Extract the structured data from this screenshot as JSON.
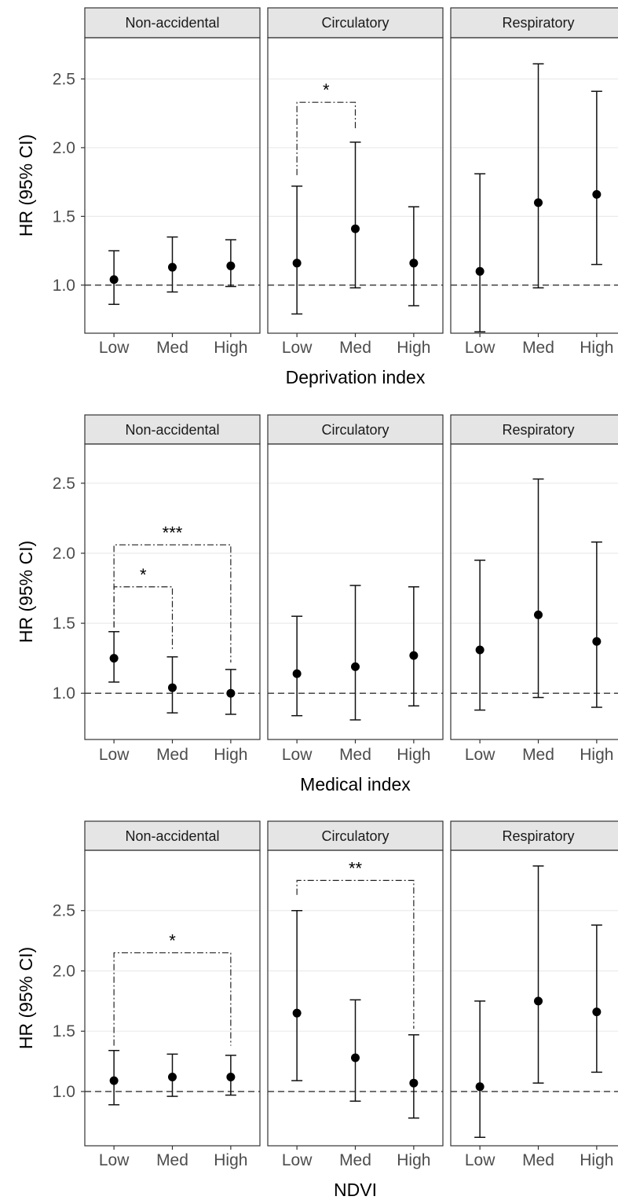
{
  "y_axis_title": "HR (95% CI)",
  "panel_titles": [
    "Non-accidental",
    "Circulatory",
    "Respiratory"
  ],
  "reference_line": 1.0,
  "chart_data": [
    {
      "type": "errorbar",
      "xlabel": "Deprivation index",
      "ylabel": "HR (95% CI)",
      "ylim": [
        0.65,
        2.8
      ],
      "yticks": [
        "1.0",
        "1.5",
        "2.0",
        "2.5"
      ],
      "categories": [
        "Low",
        "Med",
        "High"
      ],
      "grid": true,
      "facets": [
        {
          "name": "Non-accidental",
          "points": [
            {
              "x": "Low",
              "est": 1.04,
              "lo": 0.86,
              "hi": 1.25
            },
            {
              "x": "Med",
              "est": 1.13,
              "lo": 0.95,
              "hi": 1.35
            },
            {
              "x": "High",
              "est": 1.14,
              "lo": 0.99,
              "hi": 1.33
            }
          ],
          "significance": []
        },
        {
          "name": "Circulatory",
          "points": [
            {
              "x": "Low",
              "est": 1.16,
              "lo": 0.79,
              "hi": 1.72
            },
            {
              "x": "Med",
              "est": 1.41,
              "lo": 0.98,
              "hi": 2.04
            },
            {
              "x": "High",
              "est": 1.16,
              "lo": 0.85,
              "hi": 1.57
            }
          ],
          "significance": [
            {
              "from": "Low",
              "to": "Med",
              "label": "*",
              "level": 2.33,
              "from_start": 1.8,
              "to_start": 2.14
            }
          ]
        },
        {
          "name": "Respiratory",
          "points": [
            {
              "x": "Low",
              "est": 1.1,
              "lo": 0.66,
              "hi": 1.81
            },
            {
              "x": "Med",
              "est": 1.6,
              "lo": 0.98,
              "hi": 2.61
            },
            {
              "x": "High",
              "est": 1.66,
              "lo": 1.15,
              "hi": 2.41
            }
          ],
          "significance": []
        }
      ]
    },
    {
      "type": "errorbar",
      "xlabel": "Medical index",
      "ylabel": "HR (95% CI)",
      "ylim": [
        0.67,
        2.78
      ],
      "yticks": [
        "1.0",
        "1.5",
        "2.0",
        "2.5"
      ],
      "categories": [
        "Low",
        "Med",
        "High"
      ],
      "grid": true,
      "facets": [
        {
          "name": "Non-accidental",
          "points": [
            {
              "x": "Low",
              "est": 1.25,
              "lo": 1.08,
              "hi": 1.44
            },
            {
              "x": "Med",
              "est": 1.04,
              "lo": 0.86,
              "hi": 1.26
            },
            {
              "x": "High",
              "est": 1.0,
              "lo": 0.85,
              "hi": 1.17
            }
          ],
          "significance": [
            {
              "from": "Low",
              "to": "Med",
              "label": "*",
              "level": 1.76,
              "from_start": 1.47,
              "to_start": 1.3
            },
            {
              "from": "Low",
              "to": "High",
              "label": "***",
              "level": 2.06,
              "from_start": 1.47,
              "to_start": 1.22
            }
          ]
        },
        {
          "name": "Circulatory",
          "points": [
            {
              "x": "Low",
              "est": 1.14,
              "lo": 0.84,
              "hi": 1.55
            },
            {
              "x": "Med",
              "est": 1.19,
              "lo": 0.81,
              "hi": 1.77
            },
            {
              "x": "High",
              "est": 1.27,
              "lo": 0.91,
              "hi": 1.76
            }
          ],
          "significance": []
        },
        {
          "name": "Respiratory",
          "points": [
            {
              "x": "Low",
              "est": 1.31,
              "lo": 0.88,
              "hi": 1.95
            },
            {
              "x": "Med",
              "est": 1.56,
              "lo": 0.97,
              "hi": 2.53
            },
            {
              "x": "High",
              "est": 1.37,
              "lo": 0.9,
              "hi": 2.08
            }
          ],
          "significance": []
        }
      ]
    },
    {
      "type": "errorbar",
      "xlabel": "NDVI",
      "ylabel": "HR (95% CI)",
      "ylim": [
        0.55,
        3.0
      ],
      "yticks": [
        "1.0",
        "1.5",
        "2.0",
        "2.5"
      ],
      "categories": [
        "Low",
        "Med",
        "High"
      ],
      "grid": true,
      "facets": [
        {
          "name": "Non-accidental",
          "points": [
            {
              "x": "Low",
              "est": 1.09,
              "lo": 0.89,
              "hi": 1.34
            },
            {
              "x": "Med",
              "est": 1.12,
              "lo": 0.96,
              "hi": 1.31
            },
            {
              "x": "High",
              "est": 1.12,
              "lo": 0.97,
              "hi": 1.3
            }
          ],
          "significance": [
            {
              "from": "Low",
              "to": "High",
              "label": "*",
              "level": 2.15,
              "from_start": 1.38,
              "to_start": 1.38
            }
          ]
        },
        {
          "name": "Circulatory",
          "points": [
            {
              "x": "Low",
              "est": 1.65,
              "lo": 1.09,
              "hi": 2.5
            },
            {
              "x": "Med",
              "est": 1.28,
              "lo": 0.92,
              "hi": 1.76
            },
            {
              "x": "High",
              "est": 1.07,
              "lo": 0.78,
              "hi": 1.47
            }
          ],
          "significance": [
            {
              "from": "Low",
              "to": "High",
              "label": "**",
              "level": 2.75,
              "from_start": 2.63,
              "to_start": 1.52
            }
          ]
        },
        {
          "name": "Respiratory",
          "points": [
            {
              "x": "Low",
              "est": 1.04,
              "lo": 0.62,
              "hi": 1.75
            },
            {
              "x": "Med",
              "est": 1.75,
              "lo": 1.07,
              "hi": 2.87
            },
            {
              "x": "High",
              "est": 1.66,
              "lo": 1.16,
              "hi": 2.38
            }
          ],
          "significance": []
        }
      ]
    }
  ]
}
